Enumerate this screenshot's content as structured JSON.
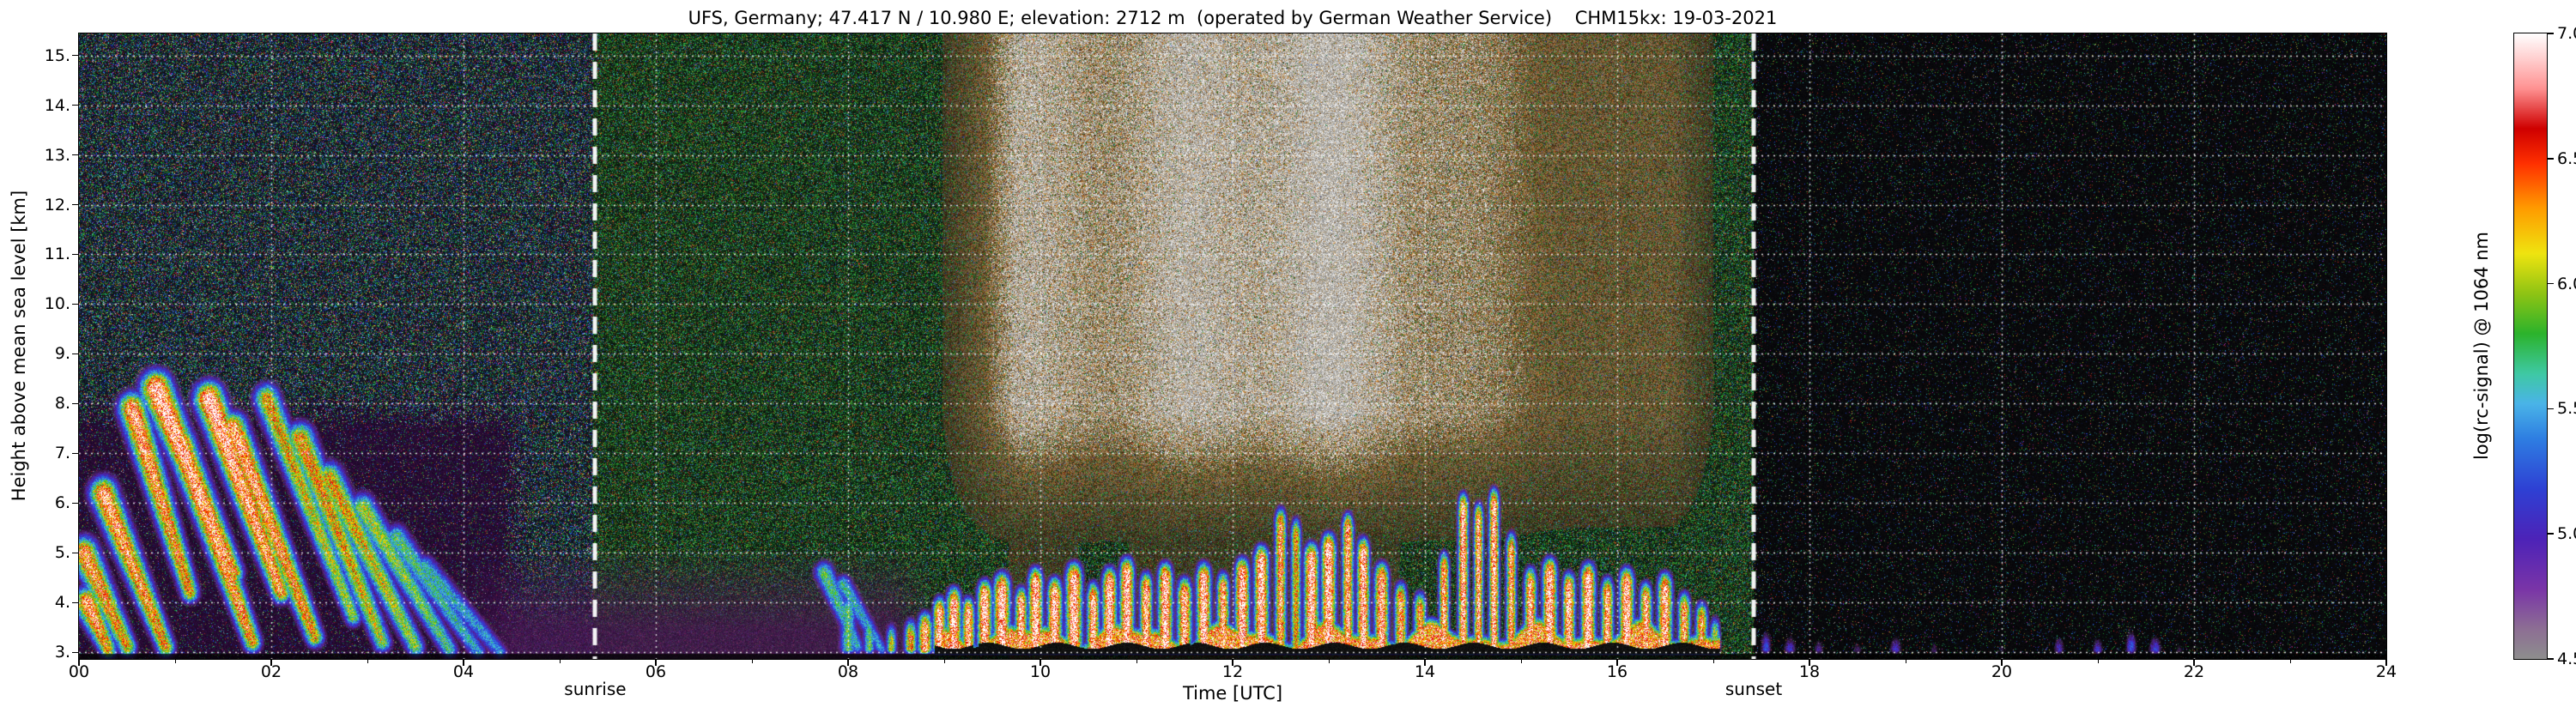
{
  "title": "UFS, Germany; 47.417 N / 10.980 E; elevation: 2712 m  (operated by German Weather Service)    CHM15kx: 19-03-2021",
  "station": {
    "name": "UFS, Germany",
    "latitude": "47.417 N",
    "longitude": "10.980 E",
    "elevation_m": 2712,
    "operator": "German Weather Service",
    "instrument": "CHM15kx",
    "date": "19-03-2021"
  },
  "axes": {
    "xlabel": "Time [UTC]",
    "ylabel": "Height above mean sea level [km]",
    "x_tick_labels": [
      "00",
      "02",
      "04",
      "06",
      "08",
      "10",
      "12",
      "14",
      "16",
      "18",
      "20",
      "22",
      "24"
    ],
    "x_tick_values": [
      0,
      2,
      4,
      6,
      8,
      10,
      12,
      14,
      16,
      18,
      20,
      22,
      24
    ],
    "y_tick_labels": [
      "3.",
      "4.",
      "5.",
      "6.",
      "7.",
      "8.",
      "9.",
      "10.",
      "11.",
      "12.",
      "13.",
      "14.",
      "15."
    ],
    "y_tick_values": [
      3,
      4,
      5,
      6,
      7,
      8,
      9,
      10,
      11,
      12,
      13,
      14,
      15
    ]
  },
  "annotations": {
    "sunrise": {
      "label": "sunrise",
      "time_utc": 5.37
    },
    "sunset": {
      "label": "sunset",
      "time_utc": 17.42
    }
  },
  "colorbar": {
    "label": "log(rc-signal) @ 1064 nm",
    "tick_labels": [
      "4.5",
      "5.0",
      "5.5",
      "6.0",
      "6.5",
      "7.0"
    ],
    "tick_values": [
      4.5,
      5.0,
      5.5,
      6.0,
      6.5,
      7.0
    ],
    "min": 4.5,
    "max": 7.0,
    "stops": [
      [
        4.5,
        "#8e8e8e"
      ],
      [
        4.62,
        "#8d6f94"
      ],
      [
        4.78,
        "#7a35a8"
      ],
      [
        4.98,
        "#4d23b8"
      ],
      [
        5.18,
        "#2e41d4"
      ],
      [
        5.38,
        "#2e7ee2"
      ],
      [
        5.52,
        "#4ab4e8"
      ],
      [
        5.64,
        "#3fc9a4"
      ],
      [
        5.8,
        "#2cb32c"
      ],
      [
        5.96,
        "#8fc414"
      ],
      [
        6.12,
        "#efe410"
      ],
      [
        6.3,
        "#ff9c00"
      ],
      [
        6.48,
        "#ff3000"
      ],
      [
        6.62,
        "#cf0000"
      ],
      [
        6.78,
        "#ff9292"
      ],
      [
        6.9,
        "#ffd0d0"
      ],
      [
        7.0,
        "#ffffff"
      ]
    ]
  },
  "chart_data": {
    "type": "heatmap",
    "title": "UFS, Germany; 47.417 N / 10.980 E; elevation: 2712 m  (operated by German Weather Service)    CHM15kx: 19-03-2021",
    "xlabel": "Time [UTC]",
    "ylabel": "Height above mean sea level [km]",
    "value_label": "log(rc-signal) @ 1064 nm",
    "x_range": [
      0,
      24
    ],
    "y_range": [
      2.87,
      15.44
    ],
    "value_range": [
      4.5,
      7.0
    ],
    "grid": {
      "x_step": 2,
      "y_step": 1,
      "style": "white dotted",
      "on": true
    },
    "events": {
      "sunrise_utc": 5.37,
      "sunset_utc": 17.42
    },
    "features": {
      "fallstreaks": [
        [
          0.05,
          5.0,
          0.5,
          3.1,
          0.85,
          0.3
        ],
        [
          0.08,
          4.0,
          0.3,
          3.05,
          0.9,
          0.28
        ],
        [
          0.25,
          6.2,
          0.9,
          3.1,
          0.9,
          0.3
        ],
        [
          0.55,
          7.9,
          1.15,
          4.2,
          0.9,
          0.3
        ],
        [
          0.8,
          8.3,
          1.6,
          4.6,
          1.0,
          0.34
        ],
        [
          1.05,
          7.2,
          1.8,
          3.2,
          0.95,
          0.3
        ],
        [
          1.35,
          8.1,
          2.1,
          4.2,
          1.0,
          0.32
        ],
        [
          1.6,
          7.5,
          2.45,
          3.3,
          0.9,
          0.3
        ],
        [
          1.95,
          8.1,
          2.85,
          3.7,
          0.7,
          0.28
        ],
        [
          2.3,
          7.3,
          3.15,
          3.2,
          0.75,
          0.3
        ],
        [
          2.6,
          6.5,
          3.5,
          3.1,
          0.7,
          0.3
        ],
        [
          2.95,
          5.9,
          3.85,
          3.05,
          0.6,
          0.28
        ],
        [
          3.3,
          5.3,
          4.15,
          3.0,
          0.5,
          0.26
        ],
        [
          3.6,
          4.7,
          4.38,
          3.0,
          0.45,
          0.24
        ],
        [
          7.75,
          4.6,
          8.1,
          3.1,
          0.5,
          0.22
        ],
        [
          7.95,
          4.35,
          8.35,
          3.05,
          0.45,
          0.2
        ]
      ],
      "cloud_towers": [
        [
          8.0,
          4.35,
          0.08,
          0.5
        ],
        [
          8.22,
          3.9,
          0.06,
          0.5
        ],
        [
          8.45,
          3.75,
          0.05,
          0.62
        ],
        [
          8.65,
          3.85,
          0.06,
          0.75
        ],
        [
          8.8,
          4.0,
          0.07,
          0.9
        ],
        [
          8.95,
          4.3,
          0.06,
          1.0
        ],
        [
          9.1,
          4.5,
          0.07,
          1.0
        ],
        [
          9.25,
          4.3,
          0.06,
          0.95
        ],
        [
          9.42,
          4.65,
          0.07,
          1.0
        ],
        [
          9.6,
          4.8,
          0.08,
          1.0
        ],
        [
          9.8,
          4.5,
          0.06,
          0.95
        ],
        [
          9.95,
          4.9,
          0.07,
          1.0
        ],
        [
          10.15,
          4.7,
          0.07,
          1.0
        ],
        [
          10.35,
          5.0,
          0.08,
          1.0
        ],
        [
          10.55,
          4.6,
          0.06,
          0.95
        ],
        [
          10.72,
          4.9,
          0.07,
          1.0
        ],
        [
          10.9,
          5.1,
          0.07,
          1.0
        ],
        [
          11.1,
          4.8,
          0.06,
          0.95
        ],
        [
          11.3,
          5.0,
          0.07,
          1.0
        ],
        [
          11.5,
          4.7,
          0.07,
          0.95
        ],
        [
          11.7,
          5.0,
          0.07,
          1.0
        ],
        [
          11.9,
          4.8,
          0.06,
          0.9
        ],
        [
          12.1,
          5.1,
          0.07,
          1.0
        ],
        [
          12.3,
          5.35,
          0.07,
          1.0
        ],
        [
          12.5,
          6.1,
          0.055,
          0.85
        ],
        [
          12.66,
          5.9,
          0.05,
          0.72
        ],
        [
          12.82,
          5.4,
          0.07,
          1.0
        ],
        [
          13.0,
          5.6,
          0.07,
          1.0
        ],
        [
          13.2,
          6.0,
          0.055,
          0.9
        ],
        [
          13.36,
          5.5,
          0.06,
          1.0
        ],
        [
          13.55,
          5.0,
          0.07,
          0.95
        ],
        [
          13.75,
          4.6,
          0.06,
          0.85
        ],
        [
          13.95,
          4.4,
          0.06,
          0.8
        ],
        [
          14.2,
          5.2,
          0.05,
          0.9
        ],
        [
          14.4,
          6.4,
          0.05,
          0.95
        ],
        [
          14.56,
          6.2,
          0.045,
          0.9
        ],
        [
          14.72,
          6.5,
          0.05,
          0.95
        ],
        [
          14.9,
          5.6,
          0.05,
          0.85
        ],
        [
          15.1,
          4.9,
          0.06,
          0.9
        ],
        [
          15.3,
          5.1,
          0.07,
          1.0
        ],
        [
          15.5,
          4.8,
          0.06,
          0.95
        ],
        [
          15.7,
          5.0,
          0.07,
          1.0
        ],
        [
          15.9,
          4.7,
          0.06,
          0.9
        ],
        [
          16.1,
          4.9,
          0.07,
          1.0
        ],
        [
          16.3,
          4.6,
          0.06,
          0.9
        ],
        [
          16.5,
          4.8,
          0.07,
          0.95
        ],
        [
          16.7,
          4.4,
          0.06,
          0.85
        ],
        [
          16.88,
          4.2,
          0.06,
          0.8
        ],
        [
          17.02,
          3.9,
          0.05,
          0.6
        ],
        [
          17.55,
          3.6,
          0.05,
          0.28
        ],
        [
          17.8,
          3.5,
          0.06,
          0.25
        ],
        [
          18.1,
          3.45,
          0.05,
          0.22
        ],
        [
          18.5,
          3.4,
          0.05,
          0.2
        ],
        [
          18.9,
          3.5,
          0.06,
          0.25
        ],
        [
          19.3,
          3.4,
          0.04,
          0.2
        ],
        [
          20.0,
          3.35,
          0.04,
          0.18
        ],
        [
          20.6,
          3.5,
          0.05,
          0.25
        ],
        [
          21.0,
          3.45,
          0.05,
          0.3
        ],
        [
          21.35,
          3.6,
          0.05,
          0.3
        ],
        [
          21.6,
          3.5,
          0.06,
          0.3
        ],
        [
          21.85,
          3.35,
          0.04,
          0.2
        ]
      ],
      "cloud_deck": {
        "t_start": 8.9,
        "t_end": 17.07,
        "base_km": 3.0,
        "top_km": 3.6,
        "black_band_top_km": 3.2
      },
      "noise_regimes": [
        {
          "t_start": 0,
          "t_end": 5.37,
          "desc": "night: dense multicolor speckle noise on dark blue background"
        },
        {
          "t_start": 0,
          "t_end": 4.6,
          "h_max_km": 8.2,
          "desc": "dark purple low-noise zone containing precipitation fallstreaks"
        },
        {
          "t_start": 3.7,
          "t_end": 8.95,
          "h_max_km": 5.0,
          "desc": "smooth purple aerosol haze near the surface"
        },
        {
          "t_start": 5.37,
          "t_end": 9.0,
          "desc": "morning: green-dominated speckle noise"
        },
        {
          "t_start": 9.0,
          "t_end": 17.1,
          "desc": "daytime solar background: bright white/tan/orange noise aloft, strongest 10.0-13.5 UTC"
        },
        {
          "t_start": 17.42,
          "t_end": 24,
          "desc": "after sunset: near-black background with sparse colored speckles"
        }
      ]
    }
  },
  "colors": {
    "background": "#ffffff",
    "grid": "#ffffff",
    "axis_text": "#000000",
    "sun_lines": "#ffffff"
  }
}
